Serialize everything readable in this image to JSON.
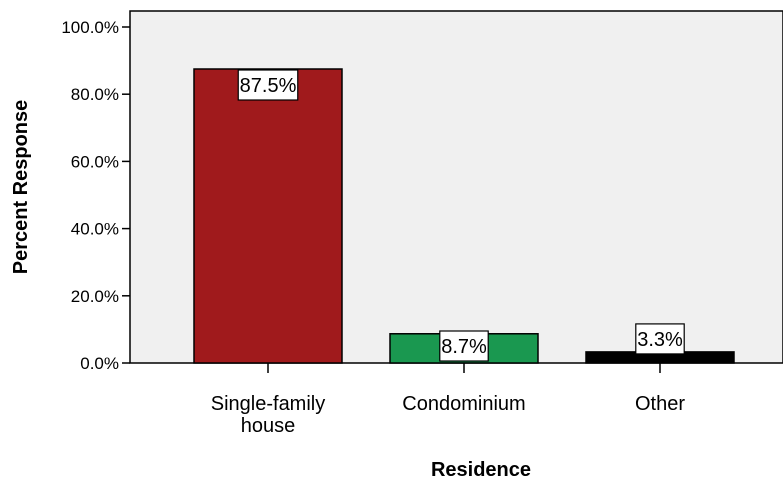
{
  "chart_data": {
    "type": "bar",
    "categories": [
      "Single-family house",
      "Condominium",
      "Other"
    ],
    "category_lines": [
      [
        "Single-family",
        "house"
      ],
      [
        "Condominium"
      ],
      [
        "Other"
      ]
    ],
    "values": [
      87.5,
      8.7,
      3.3
    ],
    "value_labels": [
      "87.5%",
      "8.7%",
      "3.3%"
    ],
    "bar_colors": [
      "#a01a1c",
      "#1a9850",
      "#000000"
    ],
    "xlabel": "Residence",
    "ylabel": "Percent Response",
    "ylim": [
      0,
      100
    ],
    "yticks": [
      0,
      20,
      40,
      60,
      80,
      100
    ],
    "ytick_labels": [
      "0.0%",
      "20.0%",
      "40.0%",
      "60.0%",
      "80.0%",
      "100.0%"
    ],
    "grid": false,
    "plot_background": "#f0f0f0"
  }
}
